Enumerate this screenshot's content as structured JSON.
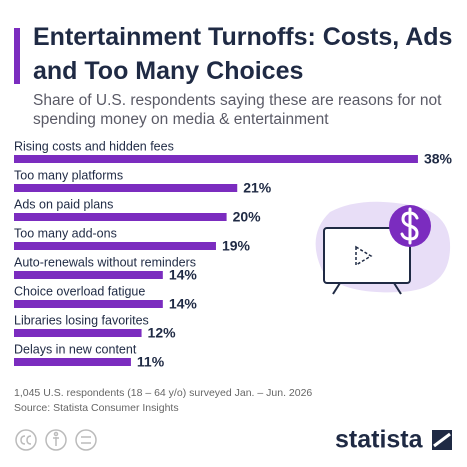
{
  "chart_data": {
    "type": "bar",
    "orientation": "horizontal",
    "title": "Entertainment Turnoffs: Costs, Ads and Too Many Choices",
    "subtitle": "Share of U.S. respondents saying these are reasons for not spending money on media & entertainment",
    "categories": [
      "Rising costs and hidden fees",
      "Too many platforms",
      "Ads on paid plans",
      "Too many add-ons",
      "Auto-renewals without reminders",
      "Choice overload fatigue",
      "Libraries losing favorites",
      "Delays in new content"
    ],
    "values": [
      38,
      21,
      20,
      19,
      14,
      14,
      12,
      11
    ],
    "value_labels": [
      "38%",
      "21%",
      "20%",
      "19%",
      "14%",
      "14%",
      "12%",
      "11%"
    ],
    "color": "#7b2cbf",
    "note": "1,045 U.S. respondents (18 – 64 y/o) surveyed Jan. – Jun. 2026",
    "source": "Source: Statista Consumer Insights",
    "logo": "statista"
  }
}
